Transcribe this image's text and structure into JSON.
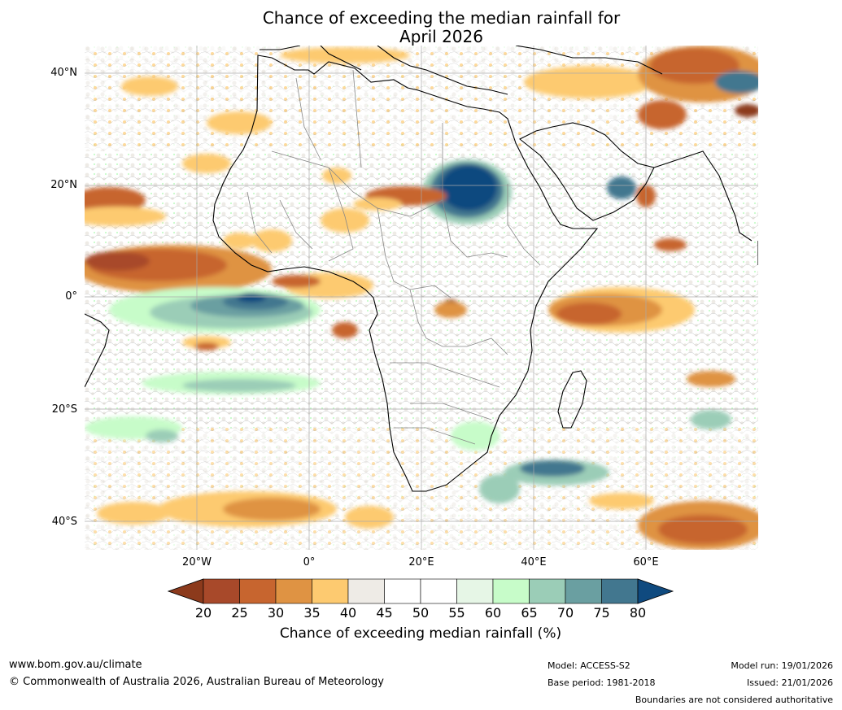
{
  "title": {
    "line1": "Chance of exceeding the median rainfall for",
    "line2": "April 2026"
  },
  "map": {
    "region": "Africa",
    "lat_labels": [
      "40°N",
      "20°N",
      "0°",
      "20°S",
      "40°S"
    ],
    "lon_labels": [
      "20°W",
      "0°",
      "20°E",
      "40°E",
      "60°E"
    ]
  },
  "colorbar": {
    "ticks": [
      "20",
      "25",
      "30",
      "35",
      "40",
      "45",
      "50",
      "55",
      "60",
      "65",
      "70",
      "75",
      "80"
    ],
    "colors": [
      "#8c3a1c",
      "#a8492a",
      "#c7652f",
      "#df9343",
      "#fdca70",
      "#eeebe6",
      "#ffffff",
      "#ffffff",
      "#e6f6e6",
      "#c7fcc9",
      "#9bcdb7",
      "#6a9fa1",
      "#42778f",
      "#0f4a7f"
    ],
    "label": "Chance of exceeding median rainfall (%)"
  },
  "footer": {
    "website": "www.bom.gov.au/climate",
    "copyright": "© Commonwealth of Australia 2026, Australian Bureau of Meteorology",
    "model": "Model: ACCESS-S2",
    "base_period": "Base period: 1981-2018",
    "model_run": "Model run: 19/01/2026",
    "issued": "Issued: 21/01/2026",
    "boundaries_note": "Boundaries are not considered authoritative"
  }
}
